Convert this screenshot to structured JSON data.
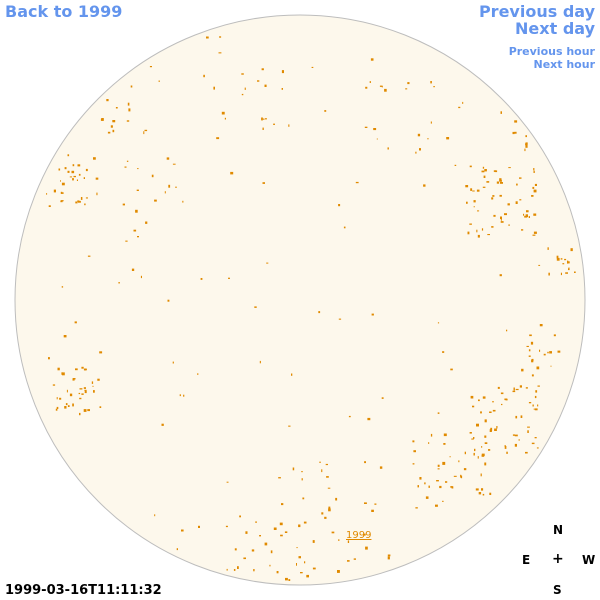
{
  "nav": {
    "back_label": "Back to 1999",
    "prev_day_label": "Previous day",
    "next_day_label": "Next day",
    "prev_hour_label": "Previous hour",
    "next_hour_label": "Next hour"
  },
  "sun": {
    "year_link_label": "1999",
    "disk_fill": "#fdf8ec",
    "disk_stroke": "#bdbdbd",
    "feature_color": "#e08a00"
  },
  "compass": {
    "north": "N",
    "east": "E",
    "center": "+",
    "west": "W",
    "south": "S"
  },
  "timestamp": "1999-03-16T11:11:32"
}
